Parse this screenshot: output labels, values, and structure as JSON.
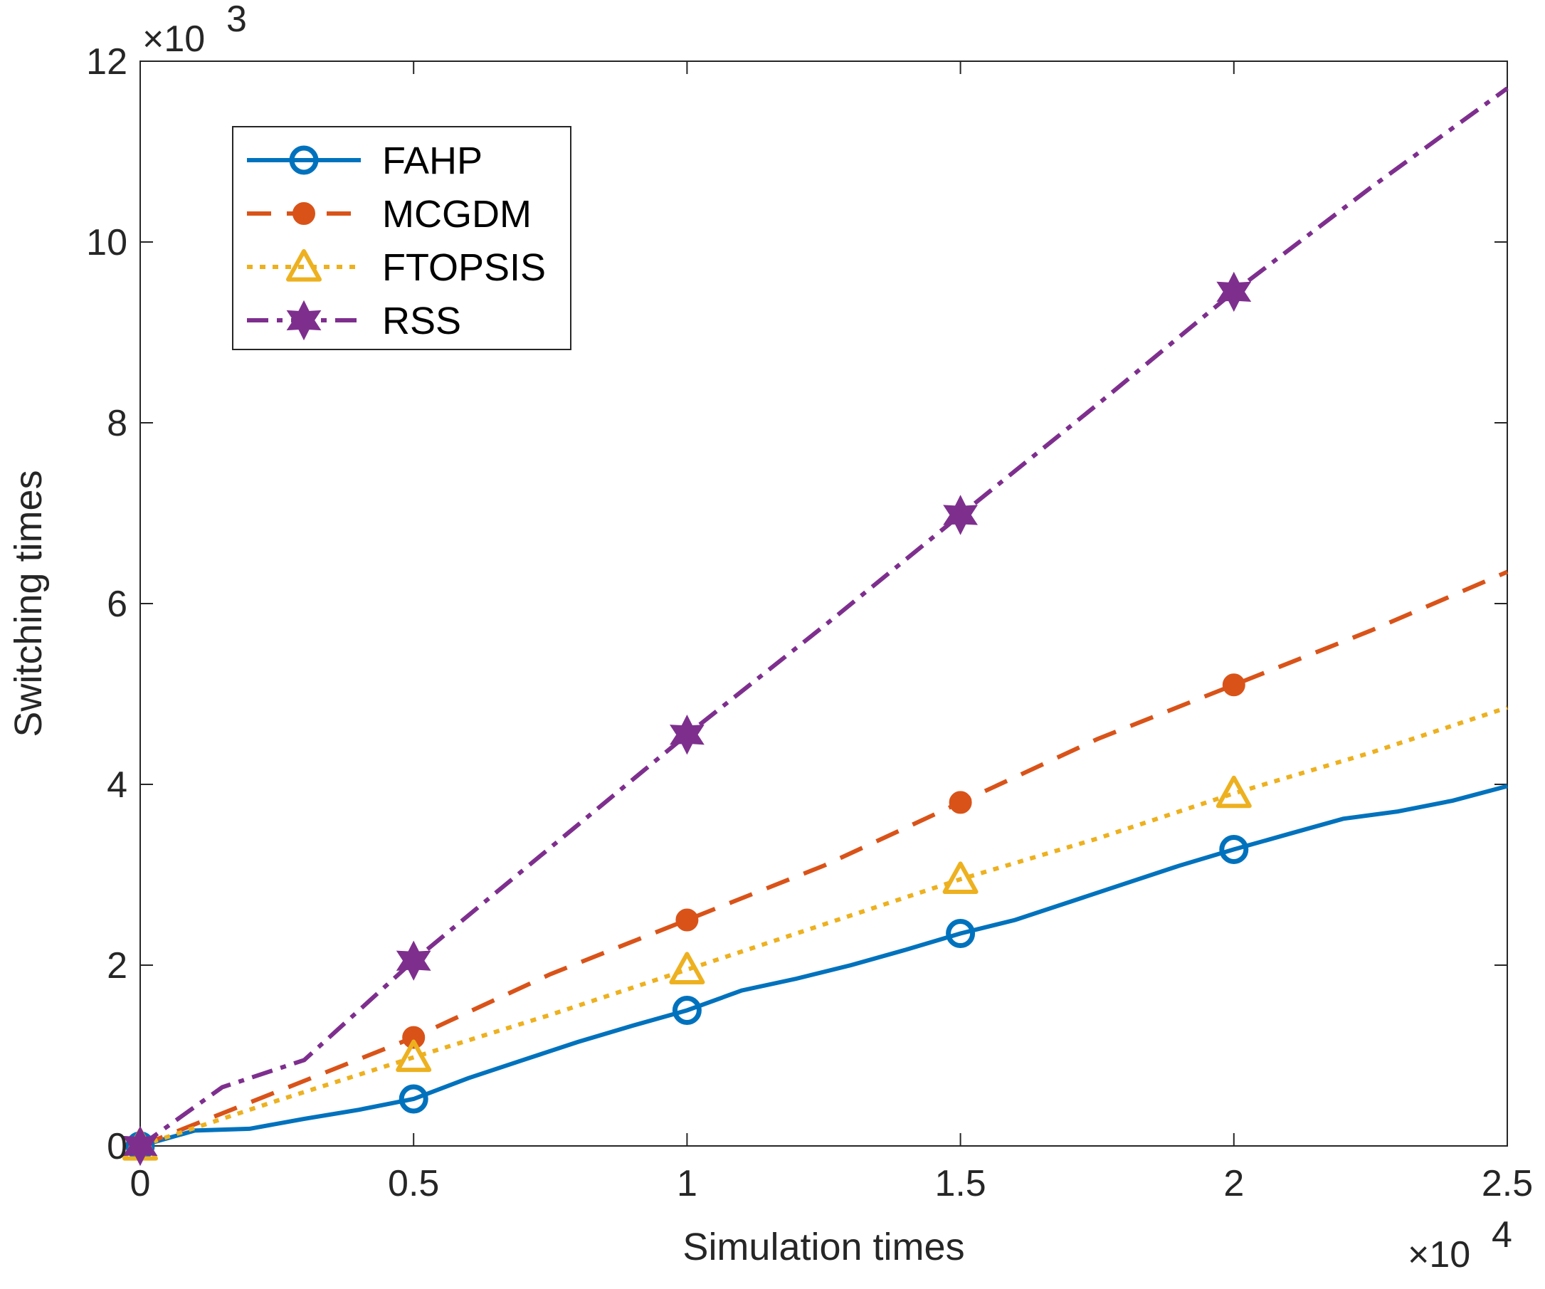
{
  "chart_data": {
    "type": "line",
    "title": "",
    "xlabel": "Simulation times",
    "ylabel": "Switching times",
    "x_multiplier": "×10",
    "x_multiplier_exp": "4",
    "y_multiplier": "×10",
    "y_multiplier_exp": "3",
    "xlim": [
      0,
      2.5
    ],
    "ylim": [
      0,
      12
    ],
    "xticks": [
      0,
      0.5,
      1,
      1.5,
      2,
      2.5
    ],
    "xtick_labels": [
      "0",
      "0.5",
      "1",
      "1.5",
      "2",
      "2.5"
    ],
    "yticks": [
      0,
      2,
      4,
      6,
      8,
      10,
      12
    ],
    "ytick_labels": [
      "0",
      "2",
      "4",
      "6",
      "8",
      "10",
      "12"
    ],
    "grid": false,
    "legend_position": "top-left",
    "series": [
      {
        "name": "FAHP",
        "color": "#0072BD",
        "marker": "circle",
        "line_style": "solid",
        "x": [
          0,
          0.1,
          0.2,
          0.3,
          0.4,
          0.5,
          0.6,
          0.7,
          0.8,
          0.9,
          1.0,
          1.1,
          1.2,
          1.3,
          1.4,
          1.5,
          1.6,
          1.7,
          1.8,
          1.9,
          2.0,
          2.1,
          2.2,
          2.3,
          2.4,
          2.5
        ],
        "y": [
          0,
          0.17,
          0.19,
          0.3,
          0.4,
          0.52,
          0.75,
          0.95,
          1.15,
          1.33,
          1.5,
          1.72,
          1.85,
          2.0,
          2.17,
          2.35,
          2.5,
          2.7,
          2.9,
          3.1,
          3.28,
          3.45,
          3.62,
          3.7,
          3.82,
          3.98
        ],
        "marker_x": [
          0,
          0.5,
          1.0,
          1.5,
          2.0
        ],
        "marker_y": [
          0,
          0.52,
          1.5,
          2.35,
          3.28
        ]
      },
      {
        "name": "MCGDM",
        "color": "#D95319",
        "marker": "filled-circle",
        "line_style": "dashed",
        "x": [
          0,
          0.25,
          0.5,
          0.75,
          1.0,
          1.25,
          1.5,
          1.75,
          2.0,
          2.25,
          2.5
        ],
        "y": [
          0,
          0.6,
          1.2,
          1.9,
          2.5,
          3.1,
          3.8,
          4.5,
          5.1,
          5.7,
          6.35
        ],
        "marker_x": [
          0,
          0.5,
          1.0,
          1.5,
          2.0
        ],
        "marker_y": [
          0,
          1.2,
          2.5,
          3.8,
          5.1
        ]
      },
      {
        "name": "FTOPSIS",
        "color": "#EDB120",
        "marker": "triangle",
        "line_style": "dotted",
        "x": [
          0,
          0.25,
          0.5,
          0.75,
          1.0,
          1.25,
          1.5,
          1.75,
          2.0,
          2.25,
          2.5
        ],
        "y": [
          0,
          0.5,
          0.98,
          1.45,
          1.95,
          2.45,
          2.95,
          3.4,
          3.9,
          4.35,
          4.85
        ],
        "marker_x": [
          0,
          0.5,
          1.0,
          1.5,
          2.0
        ],
        "marker_y": [
          0,
          0.98,
          1.95,
          2.95,
          3.9
        ]
      },
      {
        "name": "RSS",
        "color": "#7E2F8E",
        "marker": "hexagram",
        "line_style": "dash-dot",
        "x": [
          0,
          0.15,
          0.3,
          0.5,
          0.75,
          1.0,
          1.25,
          1.5,
          1.75,
          2.0,
          2.25,
          2.5
        ],
        "y": [
          0,
          0.65,
          0.95,
          2.05,
          3.3,
          4.55,
          5.75,
          6.98,
          8.2,
          9.45,
          10.6,
          11.7
        ],
        "marker_x": [
          0,
          0.5,
          1.0,
          1.5,
          2.0
        ],
        "marker_y": [
          0,
          2.05,
          4.55,
          6.98,
          9.45
        ]
      }
    ]
  }
}
